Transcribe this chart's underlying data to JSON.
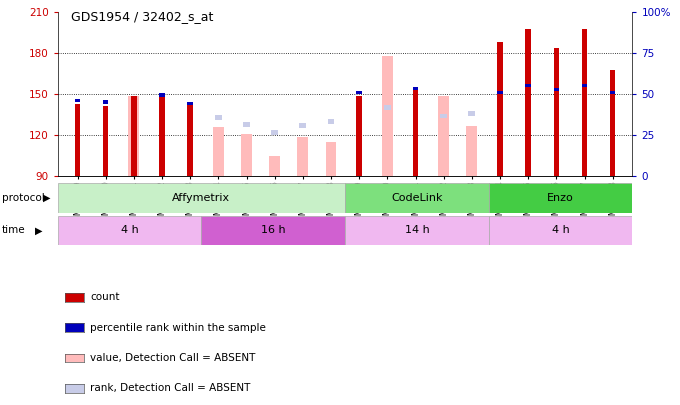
{
  "title": "GDS1954 / 32402_s_at",
  "samples": [
    "GSM73359",
    "GSM73360",
    "GSM73361",
    "GSM73362",
    "GSM73363",
    "GSM73344",
    "GSM73345",
    "GSM73346",
    "GSM73347",
    "GSM73348",
    "GSM73349",
    "GSM73350",
    "GSM73351",
    "GSM73352",
    "GSM73353",
    "GSM73354",
    "GSM73355",
    "GSM73356",
    "GSM73357",
    "GSM73358"
  ],
  "count_values": [
    143,
    141,
    149,
    148,
    142,
    null,
    null,
    null,
    null,
    null,
    149,
    null,
    153,
    null,
    null,
    188,
    198,
    184,
    198,
    168
  ],
  "absent_value_values": [
    null,
    null,
    149,
    null,
    null,
    126,
    121,
    105,
    119,
    115,
    null,
    178,
    null,
    149,
    127,
    null,
    null,
    null,
    null,
    null
  ],
  "absent_rank_values": [
    null,
    null,
    null,
    null,
    null,
    133,
    128,
    122,
    127,
    130,
    null,
    140,
    null,
    134,
    136,
    null,
    null,
    null,
    null,
    null
  ],
  "blue_dot_rank": [
    144,
    143,
    null,
    148,
    142,
    null,
    null,
    null,
    null,
    null,
    150,
    null,
    153,
    null,
    null,
    150,
    155,
    152,
    155,
    150
  ],
  "ylim_left": [
    90,
    210
  ],
  "ylim_right": [
    0,
    100
  ],
  "yticks_left": [
    90,
    120,
    150,
    180,
    210
  ],
  "yticks_right": [
    0,
    25,
    50,
    75,
    100
  ],
  "right_tick_labels": [
    "0",
    "25",
    "50",
    "75",
    "100%"
  ],
  "grid_lines": [
    120,
    150,
    180
  ],
  "protocol_groups": [
    {
      "label": "Affymetrix",
      "start": 0,
      "end": 10,
      "color": "#c8f0c8"
    },
    {
      "label": "CodeLink",
      "start": 10,
      "end": 15,
      "color": "#7de07d"
    },
    {
      "label": "Enzo",
      "start": 15,
      "end": 20,
      "color": "#44cc44"
    }
  ],
  "time_groups": [
    {
      "label": "4 h",
      "start": 0,
      "end": 5,
      "color": "#f0b8f0"
    },
    {
      "label": "16 h",
      "start": 5,
      "end": 10,
      "color": "#d060d0"
    },
    {
      "label": "14 h",
      "start": 10,
      "end": 15,
      "color": "#f0b8f0"
    },
    {
      "label": "4 h",
      "start": 15,
      "end": 20,
      "color": "#f0b8f0"
    }
  ],
  "legend_items": [
    {
      "label": "count",
      "color": "#cc0000"
    },
    {
      "label": "percentile rank within the sample",
      "color": "#0000bb"
    },
    {
      "label": "value, Detection Call = ABSENT",
      "color": "#ffbbbb"
    },
    {
      "label": "rank, Detection Call = ABSENT",
      "color": "#c8cce8"
    }
  ],
  "count_color": "#cc0000",
  "rank_color": "#0000bb",
  "absent_value_color": "#ffbbbb",
  "absent_rank_color": "#c8cce8",
  "left_tick_color": "#cc0000",
  "right_tick_color": "#0000bb",
  "bg_color": "#ffffff"
}
